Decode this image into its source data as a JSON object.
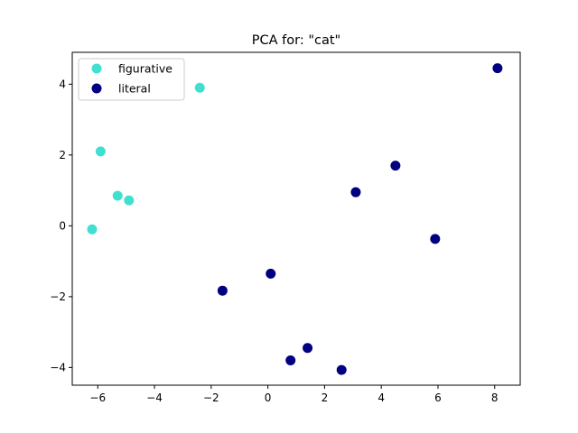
{
  "chart_data": {
    "type": "scatter",
    "title": "PCA for: \"cat\"",
    "xlabel": "",
    "ylabel": "",
    "xlim": [
      -6.9,
      8.9
    ],
    "ylim": [
      -4.5,
      4.9
    ],
    "xticks": [
      -6,
      -4,
      -2,
      0,
      2,
      4,
      6,
      8
    ],
    "yticks": [
      -4,
      -2,
      0,
      2,
      4
    ],
    "xtick_labels": [
      "−6",
      "−4",
      "−2",
      "0",
      "2",
      "4",
      "6",
      "8"
    ],
    "ytick_labels": [
      "−4",
      "−2",
      "0",
      "2",
      "4"
    ],
    "grid": false,
    "legend_position": "top-left",
    "series": [
      {
        "name": "figurative",
        "color": "#40e0d0",
        "points": [
          {
            "x": -2.4,
            "y": 3.9
          },
          {
            "x": -5.9,
            "y": 2.1
          },
          {
            "x": -5.3,
            "y": 0.85
          },
          {
            "x": -4.9,
            "y": 0.72
          },
          {
            "x": -6.2,
            "y": -0.1
          }
        ]
      },
      {
        "name": "literal",
        "color": "#000080",
        "points": [
          {
            "x": 8.1,
            "y": 4.45
          },
          {
            "x": 4.5,
            "y": 1.7
          },
          {
            "x": 3.1,
            "y": 0.95
          },
          {
            "x": 5.9,
            "y": -0.37
          },
          {
            "x": 0.1,
            "y": -1.35
          },
          {
            "x": -1.6,
            "y": -1.83
          },
          {
            "x": 1.4,
            "y": -3.45
          },
          {
            "x": 0.8,
            "y": -3.8
          },
          {
            "x": 2.6,
            "y": -4.07
          }
        ]
      }
    ]
  }
}
